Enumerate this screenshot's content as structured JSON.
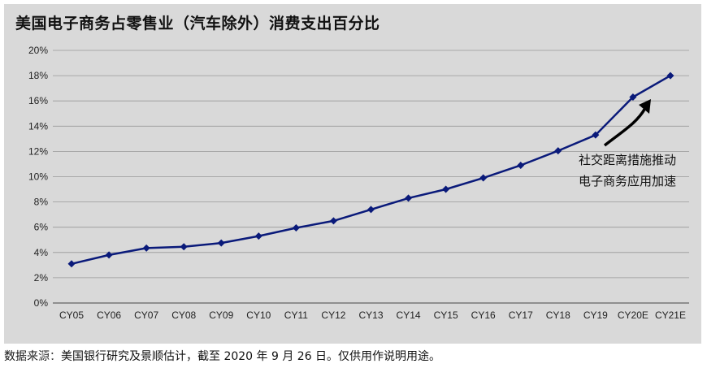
{
  "chart_data": {
    "type": "line",
    "title": "美国电子商务占零售业（汽车除外）消费支出百分比",
    "categories": [
      "CY05",
      "CY06",
      "CY07",
      "CY08",
      "CY09",
      "CY10",
      "CY11",
      "CY12",
      "CY13",
      "CY14",
      "CY15",
      "CY16",
      "CY17",
      "CY18",
      "CY19",
      "CY20E",
      "CY21E"
    ],
    "series": [
      {
        "values": [
          3.1,
          3.8,
          4.35,
          4.45,
          4.75,
          5.3,
          5.95,
          6.5,
          7.4,
          8.3,
          9.0,
          9.9,
          10.9,
          12.05,
          13.3,
          16.3,
          18.0
        ]
      }
    ],
    "ylim": [
      0,
      20
    ],
    "yticks": [
      "0%",
      "2%",
      "4%",
      "6%",
      "8%",
      "10%",
      "12%",
      "14%",
      "16%",
      "18%",
      "20%"
    ],
    "grid": true,
    "annotation": {
      "lines": [
        "社交距离措施推动",
        "电子商务应用加速"
      ]
    },
    "colors": {
      "line": "#0a1a7a",
      "background": "#d9d9d9",
      "grid": "#999999",
      "arrow": "#000000"
    }
  },
  "source": "数据来源：美国银行研究及景顺估计，截至 2020 年 9 月 26 日。仅供用作说明用途。"
}
